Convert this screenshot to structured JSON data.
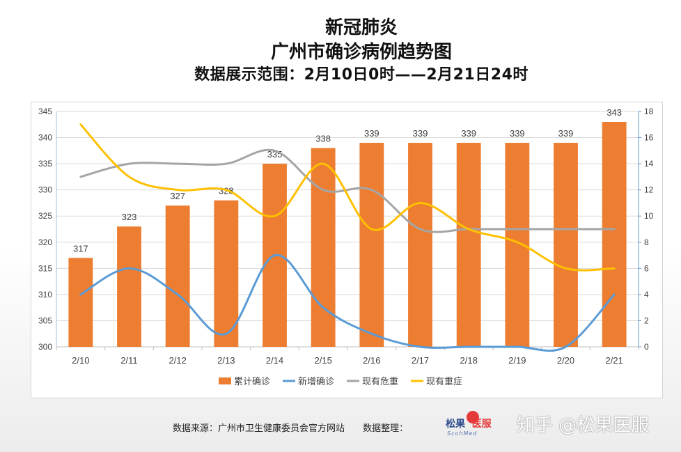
{
  "title": {
    "line1": "新冠肺炎",
    "line2": "广州市确诊病例趋势图",
    "line3": "数据展示范围：2月10日0时——2月21日24时"
  },
  "chart_data": {
    "type": "bar+line",
    "categories": [
      "2/10",
      "2/11",
      "2/12",
      "2/13",
      "2/14",
      "2/15",
      "2/16",
      "2/17",
      "2/18",
      "2/19",
      "2/20",
      "2/21"
    ],
    "series": [
      {
        "name": "累计确诊",
        "type": "bar",
        "axis": "left",
        "values": [
          317,
          323,
          327,
          328,
          335,
          338,
          339,
          339,
          339,
          339,
          339,
          343
        ],
        "color": "#ED7D31"
      },
      {
        "name": "新增确诊",
        "type": "line",
        "axis": "right",
        "values": [
          4,
          6,
          4,
          1,
          7,
          3,
          1,
          0,
          0,
          0,
          0,
          4
        ],
        "color": "#5B9BD5"
      },
      {
        "name": "现有危重",
        "type": "line",
        "axis": "right",
        "values": [
          13,
          14,
          14,
          14,
          15,
          12,
          12,
          9,
          9,
          9,
          9,
          9
        ],
        "color": "#A5A5A5"
      },
      {
        "name": "现有重症",
        "type": "line",
        "axis": "right",
        "values": [
          17,
          13,
          12,
          12,
          10,
          14,
          9,
          11,
          9,
          8,
          6,
          6
        ],
        "color": "#FFC000"
      }
    ],
    "y_left": {
      "min": 300,
      "max": 345,
      "step": 5,
      "ticks": [
        "300",
        "305",
        "310",
        "315",
        "320",
        "325",
        "330",
        "335",
        "340",
        "345"
      ]
    },
    "y_right": {
      "min": 0,
      "max": 18,
      "step": 2,
      "ticks": [
        "0",
        "2",
        "4",
        "6",
        "8",
        "10",
        "12",
        "14",
        "16",
        "18"
      ]
    },
    "bar_labels": [
      "317",
      "323",
      "327",
      "328",
      "335",
      "338",
      "339",
      "339",
      "339",
      "339",
      "339",
      "343"
    ],
    "legend_position": "bottom"
  },
  "footer": {
    "source": "数据来源：广州市卫生健康委员会官方网站",
    "compiler": "数据整理："
  },
  "logo": {
    "name_a": "松果",
    "name_b": "医服",
    "sub": "ScohMed"
  },
  "watermark": "知乎 @松果医服"
}
